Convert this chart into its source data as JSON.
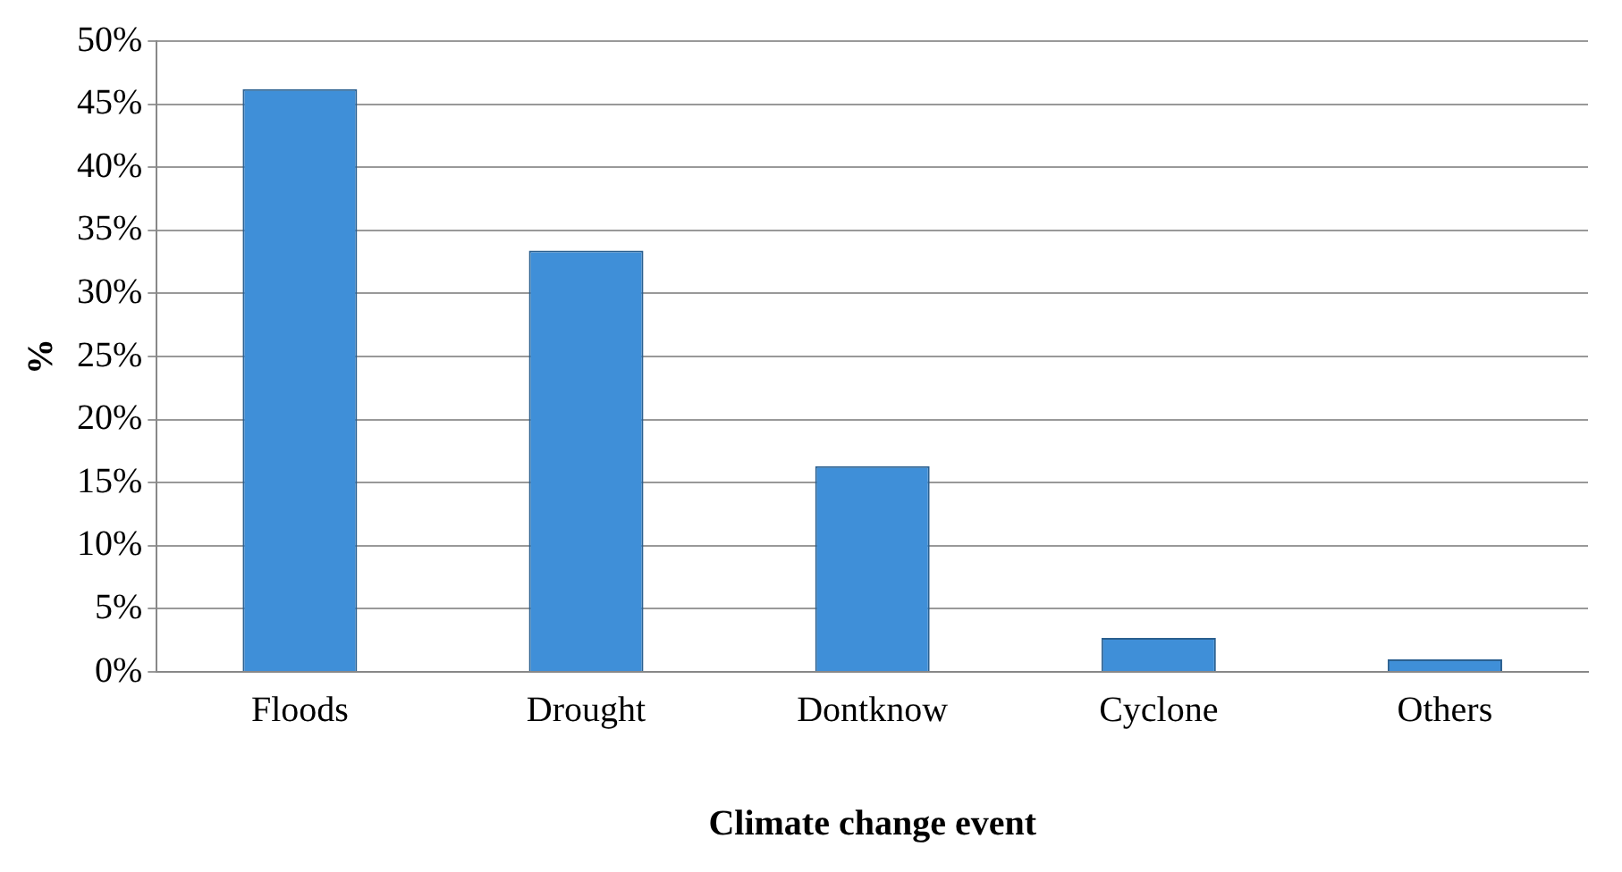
{
  "chart_data": {
    "type": "bar",
    "xlabel": "Climate change event",
    "ylabel": "%",
    "categories": [
      "Floods",
      "Drought",
      "Dontknow",
      "Cyclone",
      "Others"
    ],
    "values": [
      46.2,
      33.4,
      16.3,
      2.7,
      1.0
    ],
    "color": "#3f8fd8",
    "ylim": [
      0,
      50
    ],
    "yticks": [
      {
        "value": 0,
        "label": "0%"
      },
      {
        "value": 5,
        "label": "5%"
      },
      {
        "value": 10,
        "label": "10%"
      },
      {
        "value": 15,
        "label": "15%"
      },
      {
        "value": 20,
        "label": "20%"
      },
      {
        "value": 25,
        "label": "25%"
      },
      {
        "value": 30,
        "label": "30%"
      },
      {
        "value": 35,
        "label": "35%"
      },
      {
        "value": 40,
        "label": "40%"
      },
      {
        "value": 45,
        "label": "45%"
      },
      {
        "value": 50,
        "label": "50%"
      }
    ],
    "grid": "y",
    "legend": false
  }
}
